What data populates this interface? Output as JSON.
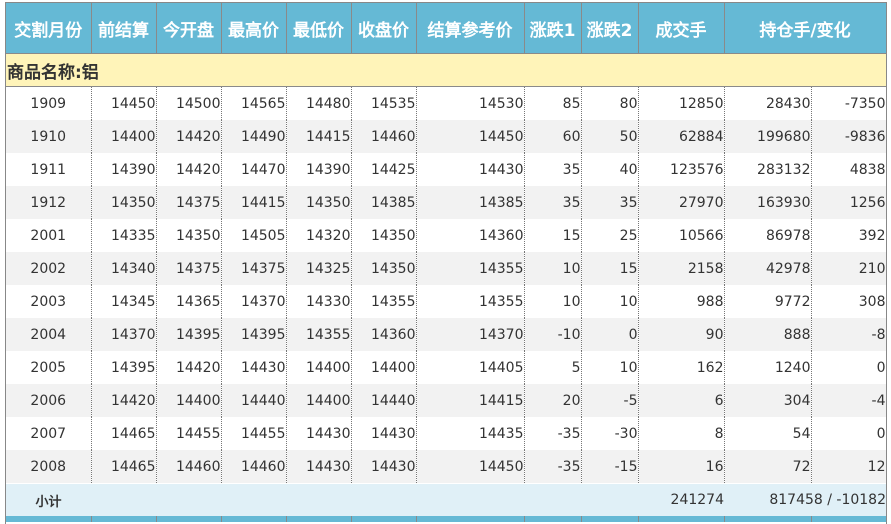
{
  "headers": [
    "交割月份",
    "前结算",
    "今开盘",
    "最高价",
    "最低价",
    "收盘价",
    "结算参考价",
    "涨跌1",
    "涨跌2",
    "成交手",
    "持仓手/变化"
  ],
  "commodity_label": "商品名称:铝",
  "rows": [
    [
      "1909",
      "14450",
      "14500",
      "14565",
      "14480",
      "14535",
      "14530",
      "85",
      "80",
      "12850",
      "28430",
      "-7350"
    ],
    [
      "1910",
      "14400",
      "14420",
      "14490",
      "14415",
      "14460",
      "14450",
      "60",
      "50",
      "62884",
      "199680",
      "-9836"
    ],
    [
      "1911",
      "14390",
      "14420",
      "14470",
      "14390",
      "14425",
      "14430",
      "35",
      "40",
      "123576",
      "283132",
      "4838"
    ],
    [
      "1912",
      "14350",
      "14375",
      "14415",
      "14350",
      "14385",
      "14385",
      "35",
      "35",
      "27970",
      "163930",
      "1256"
    ],
    [
      "2001",
      "14335",
      "14350",
      "14505",
      "14320",
      "14350",
      "14360",
      "15",
      "25",
      "10566",
      "86978",
      "392"
    ],
    [
      "2002",
      "14340",
      "14375",
      "14375",
      "14325",
      "14350",
      "14355",
      "10",
      "15",
      "2158",
      "42978",
      "210"
    ],
    [
      "2003",
      "14345",
      "14365",
      "14370",
      "14330",
      "14355",
      "14355",
      "10",
      "10",
      "988",
      "9772",
      "308"
    ],
    [
      "2004",
      "14370",
      "14395",
      "14395",
      "14355",
      "14360",
      "14370",
      "-10",
      "0",
      "90",
      "888",
      "-8"
    ],
    [
      "2005",
      "14395",
      "14420",
      "14430",
      "14400",
      "14400",
      "14405",
      "5",
      "10",
      "162",
      "1240",
      "0"
    ],
    [
      "2006",
      "14420",
      "14400",
      "14440",
      "14400",
      "14440",
      "14415",
      "20",
      "-5",
      "6",
      "304",
      "-4"
    ],
    [
      "2007",
      "14465",
      "14455",
      "14455",
      "14430",
      "14430",
      "14435",
      "-35",
      "-30",
      "8",
      "54",
      "0"
    ],
    [
      "2008",
      "14465",
      "14460",
      "14460",
      "14430",
      "14430",
      "14450",
      "-35",
      "-15",
      "16",
      "72",
      "12"
    ]
  ],
  "subtotal": {
    "label": "小计",
    "volume": "241274",
    "open_interest": "817458 / -10182"
  },
  "colors": {
    "header": "#65b9d5",
    "commodity_row": "#fff4b9",
    "alt_row": "#f2f2f2",
    "subtotal": "#e0f0f7"
  }
}
